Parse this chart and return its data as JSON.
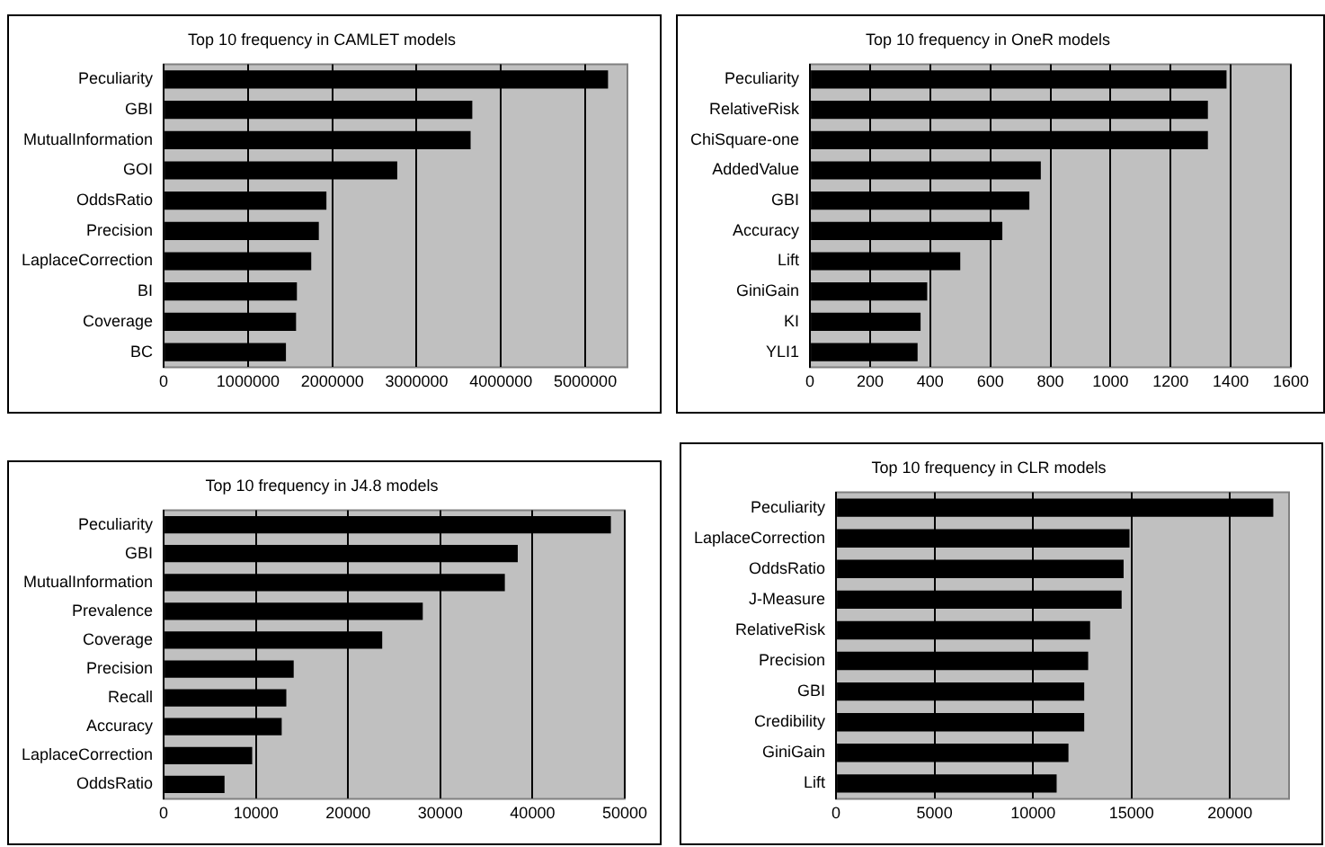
{
  "chart_data": [
    {
      "type": "bar",
      "orientation": "horizontal",
      "title": "Top 10 frequency in CAMLET models",
      "categories": [
        "Peculiarity",
        "GBI",
        "MutualInformation",
        "GOI",
        "OddsRatio",
        "Precision",
        "LaplaceCorrection",
        "BI",
        "Coverage",
        "BC"
      ],
      "values": [
        5270000,
        3660000,
        3640000,
        2770000,
        1930000,
        1840000,
        1750000,
        1580000,
        1570000,
        1450000
      ],
      "color": "#000000",
      "xlim": [
        0,
        5500000
      ],
      "xticks": [
        0,
        1000000,
        2000000,
        3000000,
        4000000,
        5000000
      ],
      "grid": "x"
    },
    {
      "type": "bar",
      "orientation": "horizontal",
      "title": "Top 10 frequency in OneR models",
      "categories": [
        "Peculiarity",
        "RelativeRisk",
        "ChiSquare-one",
        "AddedValue",
        "GBI",
        "Accuracy",
        "Lift",
        "GiniGain",
        "KI",
        "YLI1"
      ],
      "values": [
        1386,
        1324,
        1324,
        768,
        730,
        640,
        500,
        390,
        368,
        358
      ],
      "color": "#000000",
      "xlim": [
        0,
        1600
      ],
      "xticks": [
        0,
        200,
        400,
        600,
        800,
        1000,
        1200,
        1400,
        1600
      ],
      "grid": "x"
    },
    {
      "type": "bar",
      "orientation": "horizontal",
      "title": "Top 10 frequency in J4.8 models",
      "categories": [
        "Peculiarity",
        "GBI",
        "MutualInformation",
        "Prevalence",
        "Coverage",
        "Precision",
        "Recall",
        "Accuracy",
        "LaplaceCorrection",
        "OddsRatio"
      ],
      "values": [
        48500,
        38400,
        37000,
        28100,
        23700,
        14100,
        13300,
        12800,
        9600,
        6600
      ],
      "color": "#000000",
      "xlim": [
        0,
        50000
      ],
      "xticks": [
        0,
        10000,
        20000,
        30000,
        40000,
        50000
      ],
      "grid": "x"
    },
    {
      "type": "bar",
      "orientation": "horizontal",
      "title": "Top 10 frequency in CLR models",
      "categories": [
        "Peculiarity",
        "LaplaceCorrection",
        "OddsRatio",
        "J-Measure",
        "RelativeRisk",
        "Precision",
        "GBI",
        "Credibility",
        "GiniGain",
        "Lift"
      ],
      "values": [
        22200,
        14900,
        14600,
        14500,
        12900,
        12800,
        12600,
        12600,
        11800,
        11200
      ],
      "color": "#000000",
      "xlim": [
        0,
        23000
      ],
      "xticks": [
        0,
        5000,
        10000,
        15000,
        20000
      ],
      "grid": "x"
    }
  ]
}
